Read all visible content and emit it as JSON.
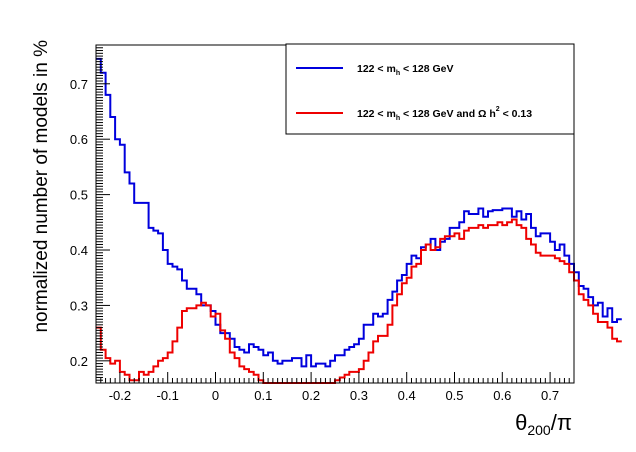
{
  "chart_data": {
    "type": "line",
    "style": "step-histogram",
    "xlabel_base": "θ",
    "xlabel_sub": "200",
    "xlabel_tail": "/π",
    "ylabel": "normalized number of models in %",
    "xlim": [
      -0.25,
      0.75
    ],
    "ylim": [
      0.16,
      0.77
    ],
    "x_ticks": [
      -0.2,
      -0.1,
      0,
      0.1,
      0.2,
      0.3,
      0.4,
      0.5,
      0.6,
      0.7
    ],
    "x_tick_labels": [
      "-0.2",
      "-0.1",
      "0",
      "0.1",
      "0.2",
      "0.3",
      "0.4",
      "0.5",
      "0.6",
      "0.7"
    ],
    "y_ticks": [
      0.2,
      0.3,
      0.4,
      0.5,
      0.6,
      0.7
    ],
    "y_tick_labels": [
      "0.2",
      "0.3",
      "0.4",
      "0.5",
      "0.6",
      "0.7"
    ],
    "grid": false,
    "legend_position": "top-right",
    "bin_width": 0.01,
    "bin_start": -0.25,
    "series": [
      {
        "name": "122 < m_h < 128 GeV",
        "legend_parts": {
          "a": "122 < m",
          "sub": "h",
          "b": " < 128 GeV",
          "sup": "",
          "c": ""
        },
        "color": "#0000dd",
        "values": [
          0.745,
          0.72,
          0.68,
          0.64,
          0.6,
          0.59,
          0.54,
          0.52,
          0.485,
          0.485,
          0.485,
          0.44,
          0.435,
          0.43,
          0.4,
          0.375,
          0.37,
          0.365,
          0.345,
          0.33,
          0.33,
          0.32,
          0.3,
          0.3,
          0.29,
          0.265,
          0.25,
          0.25,
          0.24,
          0.225,
          0.22,
          0.215,
          0.23,
          0.225,
          0.22,
          0.21,
          0.215,
          0.2,
          0.195,
          0.2,
          0.2,
          0.205,
          0.205,
          0.19,
          0.21,
          0.19,
          0.195,
          0.195,
          0.19,
          0.2,
          0.21,
          0.21,
          0.22,
          0.225,
          0.23,
          0.24,
          0.265,
          0.265,
          0.285,
          0.28,
          0.285,
          0.31,
          0.325,
          0.345,
          0.355,
          0.375,
          0.39,
          0.385,
          0.405,
          0.41,
          0.42,
          0.4,
          0.415,
          0.42,
          0.44,
          0.44,
          0.45,
          0.47,
          0.465,
          0.465,
          0.475,
          0.46,
          0.47,
          0.472,
          0.472,
          0.475,
          0.475,
          0.46,
          0.47,
          0.455,
          0.465,
          0.44,
          0.425,
          0.43,
          0.43,
          0.415,
          0.4,
          0.41,
          0.39,
          0.375,
          0.36,
          0.335,
          0.33,
          0.315,
          0.3,
          0.305,
          0.28,
          0.295,
          0.27,
          0.275
        ]
      },
      {
        "name": "122 < m_h < 128 GeV and Ω h² < 0.13",
        "legend_parts": {
          "a": "122 < m",
          "sub": "h",
          "b": " < 128 GeV and   Ω h",
          "sup": "2",
          "c": " < 0.13"
        },
        "color": "#ee0000",
        "values": [
          0.26,
          0.22,
          0.205,
          0.195,
          0.2,
          0.18,
          0.175,
          0.165,
          0.165,
          0.18,
          0.175,
          0.18,
          0.19,
          0.2,
          0.205,
          0.215,
          0.235,
          0.26,
          0.29,
          0.295,
          0.295,
          0.3,
          0.305,
          0.3,
          0.28,
          0.285,
          0.255,
          0.24,
          0.215,
          0.205,
          0.19,
          0.185,
          0.18,
          0.175,
          0.165,
          0.16,
          0.16,
          0.16,
          0.16,
          0.16,
          0.16,
          0.16,
          0.16,
          0.16,
          0.16,
          0.16,
          0.16,
          0.16,
          0.16,
          0.16,
          0.165,
          0.17,
          0.175,
          0.18,
          0.18,
          0.185,
          0.2,
          0.215,
          0.235,
          0.245,
          0.245,
          0.265,
          0.3,
          0.32,
          0.34,
          0.35,
          0.37,
          0.375,
          0.4,
          0.41,
          0.4,
          0.405,
          0.42,
          0.425,
          0.425,
          0.43,
          0.42,
          0.435,
          0.44,
          0.44,
          0.445,
          0.44,
          0.445,
          0.445,
          0.45,
          0.445,
          0.45,
          0.455,
          0.445,
          0.44,
          0.42,
          0.41,
          0.395,
          0.39,
          0.39,
          0.39,
          0.385,
          0.38,
          0.375,
          0.36,
          0.345,
          0.32,
          0.31,
          0.3,
          0.285,
          0.27,
          0.27,
          0.26,
          0.24,
          0.235
        ]
      }
    ]
  }
}
